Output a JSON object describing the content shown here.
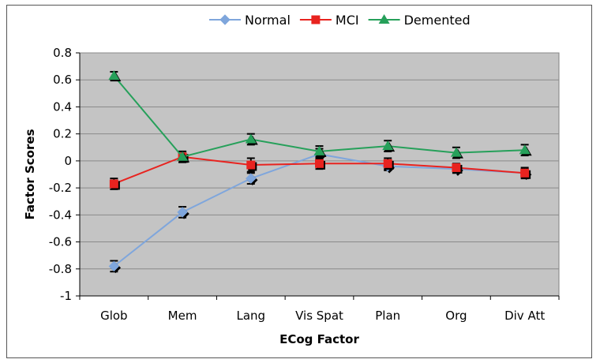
{
  "chart_data": {
    "type": "line",
    "title": "",
    "xlabel": "ECog Factor",
    "ylabel": "Factor Scores",
    "categories": [
      "Glob",
      "Mem",
      "Lang",
      "Vis Spat",
      "Plan",
      "Org",
      "Div Att"
    ],
    "ylim": [
      -1,
      0.8
    ],
    "yticks": [
      "0.8",
      "0.6",
      "0.4",
      "0.2",
      "0",
      "-0.2",
      "-0.4",
      "-0.6",
      "-0.8",
      "-1"
    ],
    "ytick_values": [
      0.8,
      0.6,
      0.4,
      0.2,
      0,
      -0.2,
      -0.4,
      -0.6,
      -0.8,
      -1
    ],
    "grid": true,
    "legend_position": "top",
    "series": [
      {
        "name": "Normal",
        "color": "#7fa6dc",
        "marker": "diamond",
        "values": [
          -0.78,
          -0.38,
          -0.13,
          0.05,
          -0.04,
          -0.06,
          -0.09
        ],
        "error": [
          0.04,
          0.04,
          0.04,
          0.04,
          0.03,
          0.03,
          0.03
        ]
      },
      {
        "name": "MCI",
        "color": "#e8231f",
        "marker": "square",
        "values": [
          -0.17,
          0.03,
          -0.03,
          -0.02,
          -0.02,
          -0.05,
          -0.09
        ],
        "error": [
          0.04,
          0.04,
          0.05,
          0.04,
          0.04,
          0.03,
          0.04
        ]
      },
      {
        "name": "Demented",
        "color": "#26a05a",
        "marker": "triangle",
        "values": [
          0.63,
          0.03,
          0.16,
          0.07,
          0.11,
          0.06,
          0.08
        ],
        "error": [
          0.03,
          0.04,
          0.04,
          0.04,
          0.04,
          0.04,
          0.04
        ]
      }
    ]
  }
}
